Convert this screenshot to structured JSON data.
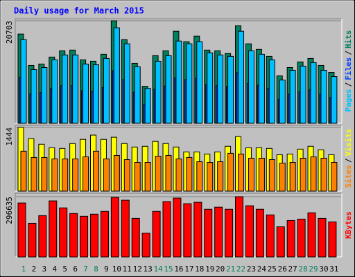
{
  "title": "Daily usage for March 2015",
  "legend_separator": "/",
  "chart_data": [
    {
      "type": "bar",
      "ylim": [
        0,
        21125
      ],
      "yticks": [
        20703
      ],
      "series": [
        {
          "name": "Hits",
          "color": "#00805c",
          "values": [
            18026,
            11687,
            11969,
            13377,
            14645,
            14787,
            12814,
            12532,
            13940,
            20703,
            16898,
            12110,
            7463,
            13659,
            14645,
            18590,
            16475,
            17602,
            14787,
            14645,
            14082,
            19714,
            16053,
            14927,
            13518,
            9575,
            11265,
            12392,
            13096,
            11687,
            10280
          ]
        },
        {
          "name": "Files",
          "color": "#0040ff",
          "values": [
            9293,
            5963,
            6195,
            7047,
            7589,
            7589,
            6582,
            6505,
            7202,
            10610,
            8828,
            6273,
            3872,
            6892,
            7512,
            9138,
            8828,
            9061,
            7822,
            7589,
            7434,
            10222,
            8054,
            7666,
            7047,
            4802,
            5886,
            6350,
            6738,
            5886,
            5189
          ]
        },
        {
          "name": "Pages",
          "color": "#00c0ff",
          "values": [
            16896,
            10842,
            11264,
            12813,
            13798,
            13798,
            11968,
            11827,
            13094,
            19290,
            16051,
            11405,
            7040,
            12531,
            13658,
            16614,
            16051,
            16474,
            14221,
            13798,
            13517,
            18586,
            14643,
            13939,
            12813,
            8730,
            10701,
            11546,
            12250,
            10701,
            9434
          ]
        }
      ]
    },
    {
      "type": "bar",
      "ylim": [
        0,
        1491
      ],
      "yticks": [
        1444
      ],
      "series": [
        {
          "name": "Visits",
          "color": "#ffff00",
          "values": [
            1444,
            1190,
            1063,
            984,
            968,
            1079,
            1174,
            1270,
            1174,
            1222,
            1079,
            1000,
            1016,
            1127,
            1079,
            1000,
            889,
            889,
            841,
            889,
            1016,
            1238,
            984,
            984,
            968,
            825,
            841,
            952,
            1016,
            936,
            825
          ]
        },
        {
          "name": "Sites",
          "color": "#ff8000",
          "values": [
            905,
            762,
            762,
            730,
            730,
            730,
            778,
            905,
            730,
            809,
            714,
            651,
            651,
            793,
            809,
            730,
            762,
            667,
            651,
            667,
            857,
            841,
            746,
            746,
            714,
            635,
            651,
            746,
            778,
            746,
            651
          ]
        }
      ]
    },
    {
      "type": "bar",
      "ylim": [
        0,
        313683
      ],
      "yticks": [
        296635
      ],
      "categories": [
        "1",
        "2",
        "3",
        "4",
        "5",
        "6",
        "7",
        "8",
        "9",
        "10",
        "11",
        "12",
        "13",
        "14",
        "15",
        "16",
        "17",
        "18",
        "19",
        "20",
        "21",
        "22",
        "23",
        "24",
        "25",
        "26",
        "27",
        "28",
        "29",
        "30",
        "31"
      ],
      "category_colors": [
        "#00805c",
        "#000000",
        "#000000",
        "#000000",
        "#000000",
        "#000000",
        "#00805c",
        "#00805c",
        "#000000",
        "#000000",
        "#000000",
        "#000000",
        "#000000",
        "#00805c",
        "#00805c",
        "#000000",
        "#000000",
        "#000000",
        "#000000",
        "#000000",
        "#00805c",
        "#00805c",
        "#000000",
        "#000000",
        "#000000",
        "#000000",
        "#000000",
        "#00805c",
        "#00805c",
        "#000000",
        "#000000"
      ],
      "series": [
        {
          "name": "KBytes",
          "color": "#ff0000",
          "values": [
            265573,
            165552,
            203491,
            275920,
            241430,
            213838,
            200042,
            210389,
            224185,
            293000,
            279369,
            189695,
            117266,
            224185,
            272471,
            289716,
            262124,
            269022,
            234532,
            244879,
            234532,
            296635,
            251777,
            234532,
            206940,
            148307,
            179348,
            186246,
            217287,
            189695,
            172450
          ]
        }
      ]
    }
  ]
}
